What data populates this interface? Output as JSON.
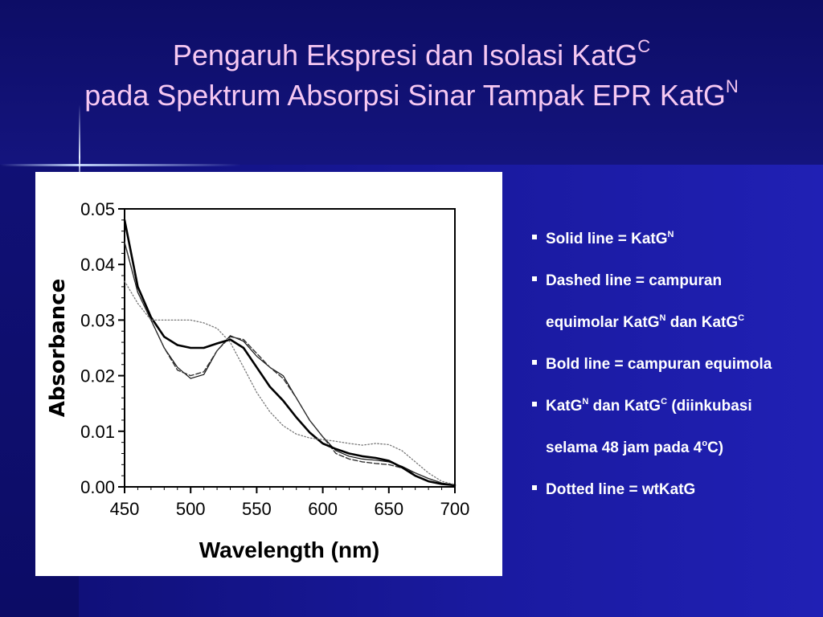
{
  "slide": {
    "title_line1": "Pengaruh Ekspresi dan Isolasi KatG",
    "title_line1_sup": "C",
    "title_line2": "pada Spektrum Absorpsi Sinar Tampak EPR KatG",
    "title_line2_sup": "N",
    "background_color": "#11117a",
    "title_color": "#f6c8f2",
    "text_color": "#ffffff"
  },
  "bullets": [
    {
      "lines": [
        [
          {
            "t": "Solid line = KatG"
          },
          {
            "t": "N",
            "sup": true
          }
        ]
      ]
    },
    {
      "lines": [
        [
          {
            "t": "Dashed line = campuran"
          }
        ],
        [
          {
            "t": "equimolar KatG"
          },
          {
            "t": "N",
            "sup": true
          },
          {
            "t": " dan KatG"
          },
          {
            "t": "C",
            "sup": true
          }
        ]
      ]
    },
    {
      "lines": [
        [
          {
            "t": "Bold line = campuran equimola"
          }
        ]
      ]
    },
    {
      "lines": [
        [
          {
            "t": "KatG"
          },
          {
            "t": "N",
            "sup": true
          },
          {
            "t": " dan KatG"
          },
          {
            "t": "C",
            "sup": true
          },
          {
            "t": " (diinkubasi"
          }
        ],
        [
          {
            "t": "selama 48 jam pada 4"
          },
          {
            "t": "o",
            "sup": true
          },
          {
            "t": "C)"
          }
        ]
      ]
    },
    {
      "lines": [
        [
          {
            "t": "Dotted line = wtKatG"
          }
        ]
      ]
    }
  ],
  "chart_data": {
    "type": "line",
    "title": "",
    "xlabel": "Wavelength (nm)",
    "ylabel": "Absorbance",
    "xlim": [
      450,
      700
    ],
    "ylim": [
      0.0,
      0.05
    ],
    "xticks": [
      450,
      500,
      550,
      600,
      650,
      700
    ],
    "xtick_labels": [
      "450",
      "500",
      "550",
      "600",
      "650",
      "700"
    ],
    "yticks": [
      0.0,
      0.01,
      0.02,
      0.03,
      0.04,
      0.05
    ],
    "ytick_labels": [
      "0.00",
      "0.01",
      "0.02",
      "0.03",
      "0.04",
      "0.05"
    ],
    "grid": false,
    "series": [
      {
        "style": "solid",
        "width": 1.2,
        "color": "#111111",
        "x": [
          450,
          460,
          470,
          480,
          490,
          500,
          510,
          520,
          530,
          540,
          550,
          560,
          570,
          580,
          590,
          600,
          610,
          620,
          630,
          640,
          650,
          660,
          670,
          680,
          690,
          700
        ],
        "y": [
          0.044,
          0.035,
          0.03,
          0.025,
          0.0215,
          0.0195,
          0.0202,
          0.0245,
          0.0272,
          0.0262,
          0.0235,
          0.0215,
          0.02,
          0.016,
          0.012,
          0.009,
          0.0065,
          0.0055,
          0.005,
          0.0048,
          0.0045,
          0.0037,
          0.0025,
          0.0015,
          0.0007,
          0.0003
        ]
      },
      {
        "style": "dashed",
        "width": 1.4,
        "color": "#333333",
        "x": [
          450,
          460,
          470,
          480,
          490,
          500,
          510,
          520,
          530,
          540,
          550,
          560,
          570,
          580,
          590,
          600,
          610,
          620,
          630,
          640,
          650,
          660,
          670,
          680,
          690,
          700
        ],
        "y": [
          0.044,
          0.035,
          0.03,
          0.025,
          0.021,
          0.02,
          0.0207,
          0.0245,
          0.027,
          0.0265,
          0.024,
          0.0215,
          0.0195,
          0.016,
          0.012,
          0.009,
          0.006,
          0.005,
          0.0045,
          0.0042,
          0.004,
          0.0034,
          0.0025,
          0.0015,
          0.0007,
          0.0003
        ]
      },
      {
        "style": "bold",
        "width": 2.6,
        "color": "#000000",
        "x": [
          450,
          460,
          470,
          480,
          490,
          500,
          510,
          520,
          530,
          540,
          550,
          560,
          570,
          580,
          590,
          600,
          610,
          620,
          630,
          640,
          650,
          660,
          670,
          680,
          690,
          700
        ],
        "y": [
          0.048,
          0.036,
          0.0305,
          0.027,
          0.0255,
          0.025,
          0.025,
          0.0258,
          0.0265,
          0.025,
          0.0215,
          0.018,
          0.0155,
          0.0125,
          0.0098,
          0.0078,
          0.0068,
          0.006,
          0.0055,
          0.0052,
          0.0047,
          0.0035,
          0.002,
          0.001,
          0.0005,
          0.0003
        ]
      },
      {
        "style": "dotted",
        "width": 1.3,
        "color": "#777777",
        "x": [
          450,
          460,
          470,
          480,
          490,
          500,
          510,
          520,
          530,
          540,
          550,
          560,
          570,
          580,
          590,
          600,
          610,
          620,
          630,
          640,
          650,
          660,
          670,
          680,
          690,
          700
        ],
        "y": [
          0.037,
          0.033,
          0.03,
          0.03,
          0.03,
          0.03,
          0.0295,
          0.0285,
          0.026,
          0.0215,
          0.017,
          0.0135,
          0.011,
          0.0095,
          0.0088,
          0.0085,
          0.0082,
          0.0078,
          0.0075,
          0.0078,
          0.0076,
          0.0065,
          0.0045,
          0.0025,
          0.001,
          0.0004
        ]
      }
    ]
  }
}
